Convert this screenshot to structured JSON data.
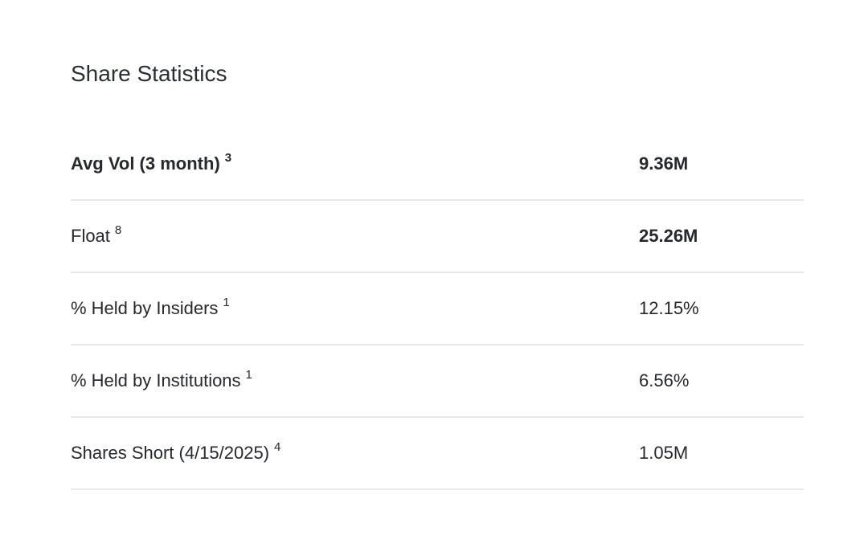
{
  "page": {
    "background_color": "#ffffff",
    "text_color": "#26282d",
    "title_color": "#2b2e33",
    "divider_color": "#e7e7ea"
  },
  "section": {
    "title": "Share Statistics"
  },
  "table": {
    "rows": [
      {
        "label": "Avg Vol (3 month)",
        "footnote": "3",
        "value": "9.36M"
      },
      {
        "label": "Float",
        "footnote": "8",
        "value": "25.26M"
      },
      {
        "label": "% Held by Insiders",
        "footnote": "1",
        "value": "12.15%"
      },
      {
        "label": "% Held by Institutions",
        "footnote": "1",
        "value": "6.56%"
      },
      {
        "label": "Shares Short (4/15/2025)",
        "footnote": "4",
        "value": "1.05M"
      }
    ]
  }
}
